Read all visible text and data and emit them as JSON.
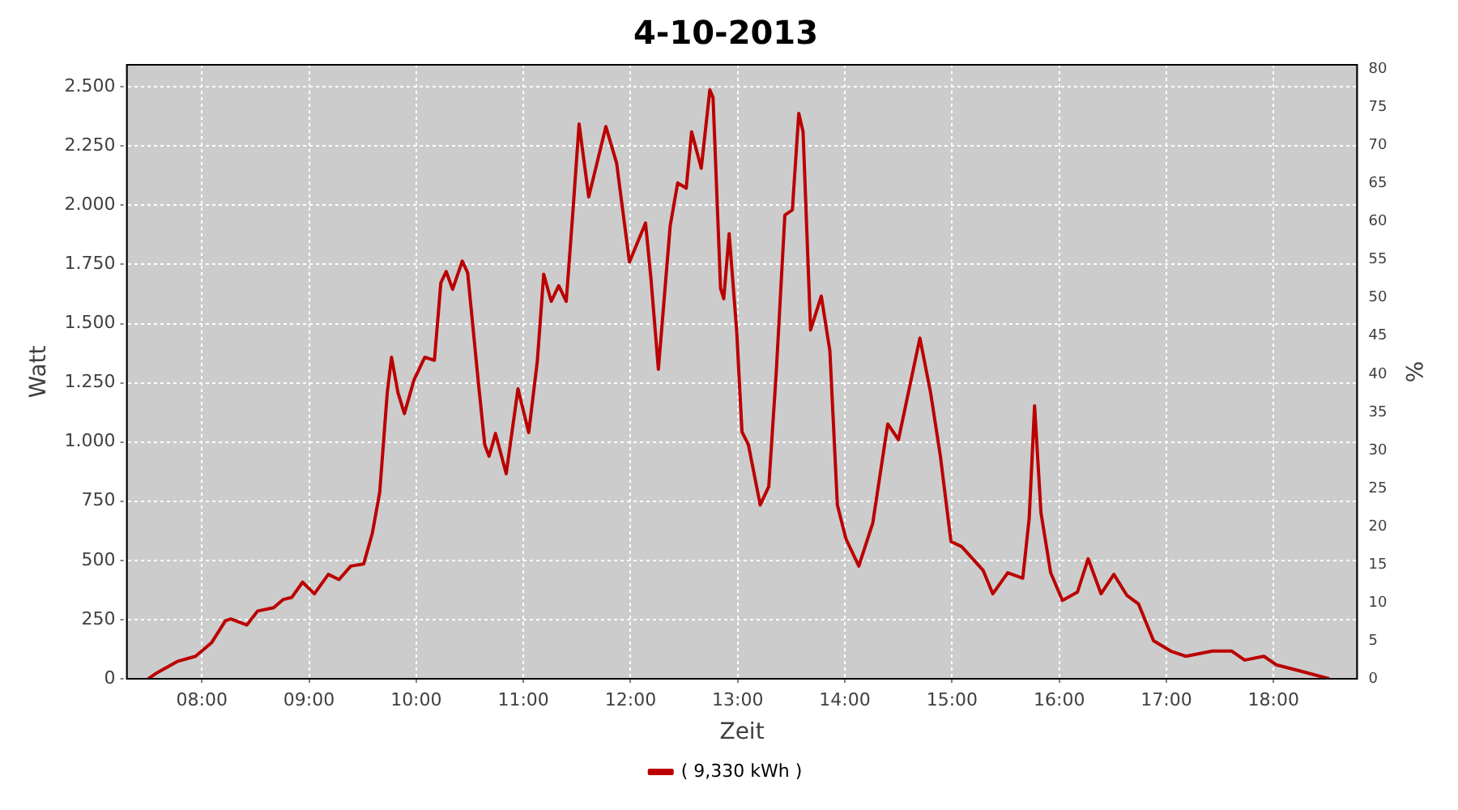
{
  "chart_data": {
    "type": "line",
    "title": "4-10-2013",
    "xlabel": "Zeit",
    "ylabel": "Watt",
    "y2label": "%",
    "x": [
      7.5,
      7.57,
      7.77,
      7.94,
      8.09,
      8.22,
      8.27,
      8.42,
      8.52,
      8.67,
      8.76,
      8.84,
      8.94,
      9.05,
      9.18,
      9.28,
      9.39,
      9.51,
      9.59,
      9.66,
      9.73,
      9.77,
      9.83,
      9.89,
      9.98,
      10.08,
      10.17,
      10.23,
      10.28,
      10.34,
      10.43,
      10.48,
      10.58,
      10.64,
      10.68,
      10.74,
      10.84,
      10.95,
      11.05,
      11.13,
      11.19,
      11.26,
      11.33,
      11.4,
      11.46,
      11.52,
      11.61,
      11.77,
      11.87,
      11.99,
      12.14,
      12.19,
      12.26,
      12.37,
      12.44,
      12.52,
      12.57,
      12.66,
      12.74,
      12.77,
      12.84,
      12.87,
      12.92,
      12.99,
      13.04,
      13.1,
      13.21,
      13.29,
      13.36,
      13.44,
      13.51,
      13.57,
      13.61,
      13.68,
      13.78,
      13.86,
      13.93,
      14.01,
      14.13,
      14.26,
      14.4,
      14.5,
      14.7,
      14.8,
      14.89,
      14.99,
      15.09,
      15.29,
      15.38,
      15.52,
      15.66,
      15.72,
      15.77,
      15.83,
      15.92,
      16.03,
      16.17,
      16.27,
      16.39,
      16.51,
      16.63,
      16.74,
      16.88,
      17.04,
      17.18,
      17.43,
      17.61,
      17.73,
      17.91,
      18.03,
      18.23,
      18.52
    ],
    "series": [
      {
        "name": "( 9,330 kWh )",
        "color": "#bb0000",
        "values": [
          0,
          22,
          73,
          95,
          152,
          245,
          253,
          227,
          286,
          300,
          335,
          344,
          408,
          359,
          441,
          419,
          476,
          485,
          613,
          789,
          1208,
          1358,
          1208,
          1120,
          1263,
          1358,
          1345,
          1672,
          1720,
          1645,
          1764,
          1715,
          1252,
          988,
          940,
          1036,
          866,
          1225,
          1040,
          1340,
          1709,
          1594,
          1660,
          1594,
          1958,
          2343,
          2035,
          2332,
          2178,
          1760,
          1925,
          1693,
          1307,
          1913,
          2094,
          2072,
          2310,
          2156,
          2487,
          2454,
          1649,
          1605,
          1880,
          1473,
          1043,
          988,
          734,
          812,
          1296,
          1958,
          1980,
          2388,
          2310,
          1473,
          1616,
          1385,
          734,
          591,
          476,
          657,
          1076,
          1010,
          1439,
          1208,
          944,
          580,
          558,
          458,
          359,
          448,
          425,
          679,
          1153,
          701,
          448,
          331,
          366,
          507,
          359,
          441,
          353,
          316,
          161,
          117,
          95,
          117,
          117,
          79,
          95,
          58,
          35,
          0
        ]
      }
    ],
    "xlim": [
      7.3,
      18.78
    ],
    "xticks": [
      {
        "value": 8,
        "label": "08:00"
      },
      {
        "value": 9,
        "label": "09:00"
      },
      {
        "value": 10,
        "label": "10:00"
      },
      {
        "value": 11,
        "label": "11:00"
      },
      {
        "value": 12,
        "label": "12:00"
      },
      {
        "value": 13,
        "label": "13:00"
      },
      {
        "value": 14,
        "label": "14:00"
      },
      {
        "value": 15,
        "label": "15:00"
      },
      {
        "value": 16,
        "label": "16:00"
      },
      {
        "value": 17,
        "label": "17:00"
      },
      {
        "value": 18,
        "label": "18:00"
      }
    ],
    "ylim": [
      0,
      2593
    ],
    "yticks": [
      0,
      250,
      500,
      750,
      {
        "value": 1000,
        "label": "1.000"
      },
      {
        "value": 1250,
        "label": "1.250"
      },
      {
        "value": 1500,
        "label": "1.500"
      },
      {
        "value": 1750,
        "label": "1.750"
      },
      {
        "value": 2000,
        "label": "2.000"
      },
      {
        "value": 2250,
        "label": "2.250"
      },
      {
        "value": 2500,
        "label": "2.500"
      }
    ],
    "y2lim": [
      0,
      80.6
    ],
    "y2ticks": [
      0,
      5,
      10,
      15,
      20,
      25,
      30,
      35,
      40,
      45,
      50,
      55,
      60,
      65,
      70,
      75,
      80
    ],
    "grid": true,
    "legend": "bottom",
    "line_style": "solid"
  }
}
